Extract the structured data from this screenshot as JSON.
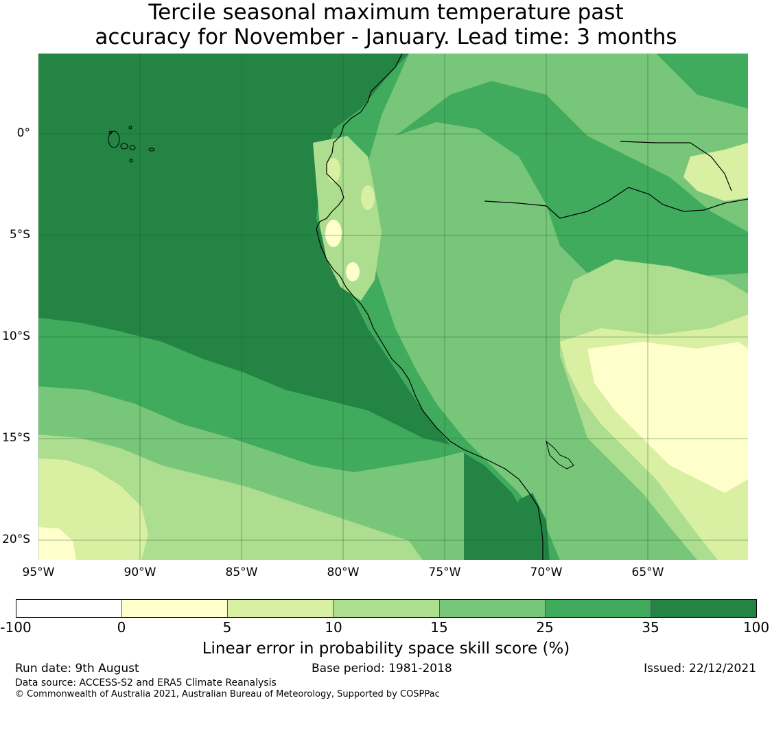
{
  "title_line1": "Tercile seasonal maximum temperature past",
  "title_line2": "accuracy for November - January. Lead time: 3 months",
  "map": {
    "y_ticks": [
      "0°",
      "5°S",
      "10°S",
      "15°S",
      "20°S"
    ],
    "x_ticks": [
      "95°W",
      "90°W",
      "85°W",
      "80°W",
      "75°W",
      "70°W",
      "65°W"
    ],
    "colors": {
      "bin_neg": "#ffffff",
      "bin_0_5": "#ffffcc",
      "bin_5_10": "#d9f0a3",
      "bin_10_15": "#addd8e",
      "bin_15_25": "#78c679",
      "bin_25_35": "#41ab5d",
      "bin_35_100": "#238443",
      "grid": "#1a5c30",
      "coast": "#000000"
    }
  },
  "colorbar": {
    "ticks": [
      "-100",
      "0",
      "5",
      "10",
      "15",
      "25",
      "35",
      "100"
    ],
    "colors": [
      "#ffffff",
      "#ffffcc",
      "#d9f0a3",
      "#addd8e",
      "#78c679",
      "#41ab5d",
      "#238443"
    ],
    "label": "Linear error in probability space skill score (%)"
  },
  "footer": {
    "run_date": "Run date: 9th August",
    "base_period": "Base period: 1981-2018",
    "issued": "Issued: 22/12/2021",
    "data_source": "Data source: ACCESS-S2 and ERA5 Climate Reanalysis",
    "copyright": "© Commonwealth of Australia 2021, Australian Bureau of Meteorology, Supported by COSPPac"
  }
}
